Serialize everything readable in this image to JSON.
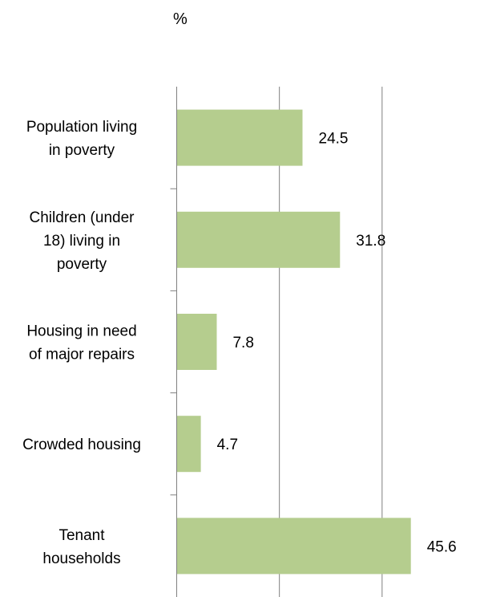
{
  "chart_data": {
    "type": "bar",
    "orientation": "horizontal",
    "title": "",
    "unit_label": "%",
    "categories": [
      [
        "Population living",
        "in poverty"
      ],
      [
        "Children (under",
        "18) living in",
        "poverty"
      ],
      [
        "Housing in need",
        "of major repairs"
      ],
      [
        "Crowded housing"
      ],
      [
        "Tenant",
        "households"
      ]
    ],
    "values": [
      24.5,
      31.8,
      7.8,
      4.7,
      45.6
    ],
    "value_labels": [
      "24.5",
      "31.8",
      "7.8",
      "4.7",
      "45.6"
    ],
    "xlim": [
      0,
      60
    ],
    "gridlines_x": [
      20,
      40,
      60
    ],
    "grid": true,
    "legend": false,
    "bar_color": "#b5cd8e",
    "grid_color": "#808080"
  }
}
